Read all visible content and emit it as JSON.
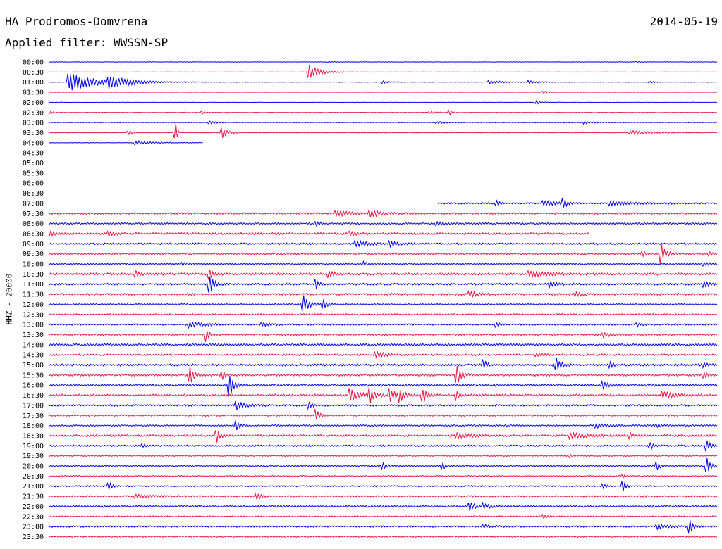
{
  "header": {
    "station": "HA Prodromos-Domvrena",
    "date": "2014-05-19",
    "filter": "Applied filter: WWSSN-SP"
  },
  "colors": {
    "even_hour_trace": "#0000ee",
    "half_hour_trace": "#ee1144"
  },
  "chart_data": {
    "type": "line",
    "title": "HA Prodromos-Domvrena",
    "ylabel": "HHZ - 20000",
    "x_span_minutes": 30,
    "row_labels": [
      "00:00",
      "00:30",
      "01:00",
      "01:30",
      "02:00",
      "02:30",
      "03:00",
      "03:30",
      "04:00",
      "04:30",
      "05:00",
      "05:30",
      "06:00",
      "06:30",
      "07:00",
      "07:30",
      "08:00",
      "08:30",
      "09:00",
      "09:30",
      "10:00",
      "10:30",
      "11:00",
      "11:30",
      "12:00",
      "12:30",
      "13:00",
      "13:30",
      "14:00",
      "14:30",
      "15:00",
      "15:30",
      "16:00",
      "16:30",
      "17:00",
      "17:30",
      "18:00",
      "18:30",
      "19:00",
      "19:30",
      "20:00",
      "20:30",
      "21:00",
      "21:30",
      "22:00",
      "22:30",
      "23:00",
      "23:30"
    ],
    "series": [
      {
        "row": "00:00",
        "noise": 0.3,
        "events": [
          [
            0.42,
            1.2,
            0.5
          ],
          [
            0.88,
            1.0,
            0.4
          ]
        ]
      },
      {
        "row": "00:30",
        "noise": 0.25,
        "events": [
          [
            0.39,
            11,
            1.5
          ]
        ]
      },
      {
        "row": "01:00",
        "noise": 0.3,
        "events": [
          [
            0.03,
            14,
            4
          ],
          [
            0.09,
            8,
            3
          ],
          [
            0.5,
            2,
            1
          ],
          [
            0.66,
            2.5,
            2
          ],
          [
            0.72,
            2,
            1.5
          ],
          [
            0.9,
            1.5,
            1
          ]
        ]
      },
      {
        "row": "01:30",
        "noise": 0.25,
        "events": [
          [
            0.74,
            2,
            0.5
          ]
        ]
      },
      {
        "row": "02:00",
        "noise": 0.3,
        "events": [
          [
            0.73,
            3,
            0.5
          ]
        ]
      },
      {
        "row": "02:30",
        "noise": 0.35,
        "events": [
          [
            0.0,
            2.5,
            0.6
          ],
          [
            0.23,
            2,
            0.4
          ],
          [
            0.57,
            1.8,
            0.8
          ],
          [
            0.6,
            3.5,
            0.4
          ]
        ]
      },
      {
        "row": "03:00",
        "noise": 0.4,
        "events": [
          [
            0.24,
            2.5,
            1
          ],
          [
            0.58,
            2,
            1.5
          ],
          [
            0.8,
            1.8,
            2
          ]
        ]
      },
      {
        "row": "03:30",
        "noise": 0.4,
        "events": [
          [
            0.12,
            2.5,
            0.5
          ],
          [
            0.19,
            14,
            0.2
          ],
          [
            0.26,
            8,
            0.8
          ],
          [
            0.87,
            3,
            3
          ]
        ]
      },
      {
        "row": "04:00",
        "noise": 0.3,
        "events": [
          [
            0.13,
            3,
            2.5
          ]
        ],
        "end": 0.23
      },
      {
        "row": "04:30",
        "flat": true
      },
      {
        "row": "05:00",
        "flat": true
      },
      {
        "row": "05:30",
        "flat": true
      },
      {
        "row": "06:00",
        "flat": true
      },
      {
        "row": "06:30",
        "flat": true
      },
      {
        "row": "07:00",
        "noise": 1.0,
        "start": 0.58,
        "events": [
          [
            0.67,
            5,
            0.4
          ],
          [
            0.74,
            4,
            2
          ],
          [
            0.77,
            8,
            0.4
          ],
          [
            0.84,
            3,
            3
          ]
        ]
      },
      {
        "row": "07:30",
        "noise": 1.1,
        "events": [
          [
            0.43,
            5,
            1.5
          ],
          [
            0.48,
            5,
            1.5
          ]
        ]
      },
      {
        "row": "08:00",
        "noise": 1.1,
        "events": [
          [
            0.4,
            3,
            0.6
          ],
          [
            0.58,
            3,
            1
          ]
        ]
      },
      {
        "row": "08:30",
        "noise": 1.3,
        "end": 0.81,
        "events": [
          [
            0.0,
            5,
            0.6
          ],
          [
            0.09,
            3,
            0.8
          ],
          [
            0.45,
            3,
            1
          ]
        ]
      },
      {
        "row": "09:00",
        "noise": 1.1,
        "events": [
          [
            0.46,
            5,
            1.5
          ],
          [
            0.51,
            4,
            1
          ]
        ]
      },
      {
        "row": "09:30",
        "noise": 1.2,
        "events": [
          [
            0.89,
            4,
            0.3
          ],
          [
            0.916,
            16,
            0.7
          ],
          [
            0.99,
            3,
            0.4
          ]
        ]
      },
      {
        "row": "10:00",
        "noise": 1.0,
        "events": [
          [
            0.2,
            2.5,
            0.5
          ],
          [
            0.47,
            3,
            0.6
          ],
          [
            0.98,
            2.5,
            1
          ]
        ]
      },
      {
        "row": "10:30",
        "noise": 1.4,
        "events": [
          [
            0.13,
            5,
            0.6
          ],
          [
            0.24,
            10,
            0.5
          ],
          [
            0.42,
            4,
            0.8
          ],
          [
            0.72,
            4,
            3
          ]
        ]
      },
      {
        "row": "11:00",
        "noise": 1.2,
        "events": [
          [
            0.24,
            18,
            0.6
          ],
          [
            0.4,
            7,
            0.4
          ],
          [
            0.75,
            5,
            1
          ],
          [
            0.98,
            5,
            1
          ]
        ]
      },
      {
        "row": "11:30",
        "noise": 1.2,
        "events": [
          [
            0.63,
            5,
            1
          ],
          [
            0.79,
            3,
            1
          ]
        ]
      },
      {
        "row": "12:00",
        "noise": 1.0,
        "events": [
          [
            0.38,
            16,
            0.7
          ],
          [
            0.41,
            8,
            0.5
          ]
        ]
      },
      {
        "row": "12:30",
        "noise": 1.0,
        "events": []
      },
      {
        "row": "13:00",
        "noise": 1.0,
        "events": [
          [
            0.21,
            4,
            2
          ],
          [
            0.32,
            3,
            1
          ],
          [
            0.67,
            4,
            0.4
          ],
          [
            0.88,
            3,
            0.6
          ]
        ]
      },
      {
        "row": "13:30",
        "noise": 1.1,
        "events": [
          [
            0.235,
            10,
            0.4
          ],
          [
            0.83,
            3,
            1.5
          ]
        ]
      },
      {
        "row": "14:00",
        "noise": 1.4,
        "events": []
      },
      {
        "row": "14:30",
        "noise": 1.1,
        "events": [
          [
            0.49,
            4,
            1.5
          ],
          [
            0.73,
            3,
            1
          ]
        ]
      },
      {
        "row": "15:00",
        "noise": 1.3,
        "events": [
          [
            0.65,
            9,
            0.4
          ],
          [
            0.76,
            10,
            0.6
          ],
          [
            0.84,
            5,
            0.4
          ],
          [
            0.98,
            4,
            0.5
          ]
        ]
      },
      {
        "row": "15:30",
        "noise": 1.3,
        "events": [
          [
            0.21,
            16,
            0.6
          ],
          [
            0.26,
            6,
            0.4
          ],
          [
            0.61,
            18,
            0.6
          ],
          [
            0.98,
            4,
            0.5
          ]
        ]
      },
      {
        "row": "16:00",
        "noise": 1.4,
        "events": [
          [
            0.27,
            18,
            0.6
          ],
          [
            0.83,
            5,
            1
          ]
        ]
      },
      {
        "row": "16:30",
        "noise": 1.3,
        "events": [
          [
            0.45,
            10,
            1.2
          ],
          [
            0.48,
            13,
            0.6
          ],
          [
            0.51,
            12,
            0.8
          ],
          [
            0.525,
            10,
            0.6
          ],
          [
            0.56,
            11,
            0.6
          ],
          [
            0.61,
            8,
            0.4
          ],
          [
            0.92,
            6,
            1.5
          ]
        ]
      },
      {
        "row": "17:00",
        "noise": 1.1,
        "events": [
          [
            0.28,
            6,
            1.5
          ],
          [
            0.39,
            5,
            0.4
          ]
        ]
      },
      {
        "row": "17:30",
        "noise": 1.0,
        "events": [
          [
            0.4,
            9,
            0.5
          ]
        ]
      },
      {
        "row": "18:00",
        "noise": 1.0,
        "events": [
          [
            0.28,
            7,
            0.5
          ],
          [
            0.82,
            3,
            1.5
          ],
          [
            0.91,
            3,
            0.5
          ]
        ]
      },
      {
        "row": "18:30",
        "noise": 1.2,
        "events": [
          [
            0.25,
            12,
            0.5
          ],
          [
            0.61,
            4,
            2
          ],
          [
            0.78,
            4,
            3
          ],
          [
            0.87,
            5,
            0.4
          ]
        ]
      },
      {
        "row": "19:00",
        "noise": 1.0,
        "events": [
          [
            0.14,
            3,
            0.4
          ],
          [
            0.9,
            5,
            0.5
          ],
          [
            0.985,
            8,
            0.6
          ]
        ]
      },
      {
        "row": "19:30",
        "noise": 0.8,
        "events": [
          [
            0.78,
            2.5,
            0.4
          ]
        ]
      },
      {
        "row": "20:00",
        "noise": 1.0,
        "events": [
          [
            0.5,
            5,
            0.5
          ],
          [
            0.59,
            5,
            0.4
          ],
          [
            0.91,
            8,
            0.4
          ],
          [
            0.985,
            12,
            0.6
          ]
        ]
      },
      {
        "row": "20:30",
        "noise": 0.8,
        "events": [
          [
            0.86,
            3,
            0.4
          ]
        ]
      },
      {
        "row": "21:00",
        "noise": 0.8,
        "events": [
          [
            0.09,
            6,
            0.4
          ],
          [
            0.83,
            5,
            0.4
          ],
          [
            0.86,
            7,
            0.4
          ]
        ]
      },
      {
        "row": "21:30",
        "noise": 0.9,
        "events": [
          [
            0.13,
            3,
            2
          ],
          [
            0.31,
            6,
            0.6
          ]
        ]
      },
      {
        "row": "22:00",
        "noise": 1.2,
        "events": [
          [
            0.63,
            6,
            0.6
          ],
          [
            0.65,
            5,
            0.8
          ]
        ]
      },
      {
        "row": "22:30",
        "noise": 0.8,
        "events": [
          [
            0.74,
            3,
            0.5
          ]
        ]
      },
      {
        "row": "23:00",
        "noise": 1.0,
        "events": [
          [
            0.65,
            3,
            1
          ],
          [
            0.91,
            4,
            1.5
          ],
          [
            0.96,
            10,
            0.4
          ]
        ]
      },
      {
        "row": "23:30",
        "noise": 0.9,
        "events": []
      }
    ]
  }
}
